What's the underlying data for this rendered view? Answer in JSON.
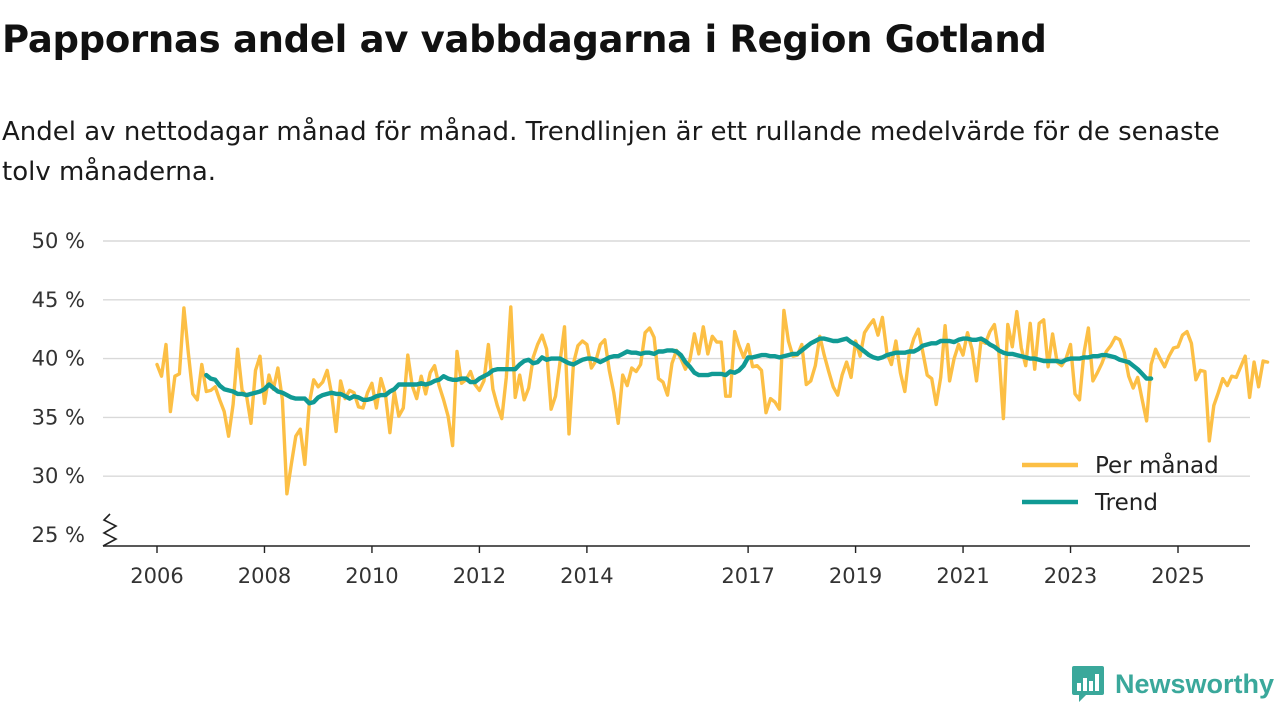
{
  "title": "Pappornas andel av vabbdagarna i Region Gotland",
  "subtitle": "Andel av nettodagar månad för månad. Trendlinjen är ett rullande medelvärde för de senaste tolv månaderna.",
  "brand": {
    "name": "Newsworthy",
    "logo_icon": "bar-chart-bubble-icon"
  },
  "colors": {
    "monthly": "#fcbf45",
    "trend": "#109a94",
    "grid": "#d9d9d9",
    "axis": "#222222"
  },
  "chart_data": {
    "type": "line",
    "title": "Pappornas andel av vabbdagarna i Region Gotland",
    "xlabel": "",
    "ylabel": "",
    "ylim": [
      25,
      50
    ],
    "y_ticks": [
      25,
      30,
      35,
      40,
      45,
      50
    ],
    "y_tick_labels": [
      "25 %",
      "30 %",
      "35 %",
      "40 %",
      "45 %",
      "50 %"
    ],
    "y_axis_break": true,
    "x_start": 2006.0,
    "x_step": 0.083333,
    "x_ticks": [
      2006,
      2008,
      2010,
      2012,
      2014,
      2017,
      2019,
      2021,
      2023,
      2025
    ],
    "x_tick_labels": [
      "2006",
      "2008",
      "2010",
      "2012",
      "2014",
      "2017",
      "2019",
      "2021",
      "2023",
      "2025"
    ],
    "legend": {
      "position": "bottom-right"
    },
    "series": [
      {
        "name": "Per månad",
        "color": "#fcbf45",
        "values": [
          39.5,
          38.5,
          41.2,
          35.5,
          38.5,
          38.7,
          44.3,
          40.5,
          37.0,
          36.5,
          39.5,
          37.2,
          37.3,
          37.6,
          36.5,
          35.5,
          33.4,
          36.1,
          40.8,
          37.3,
          36.8,
          34.5,
          39.0,
          40.2,
          36.2,
          38.6,
          37.4,
          39.2,
          36.5,
          28.5,
          31.0,
          33.4,
          34.0,
          31.0,
          36.2,
          38.2,
          37.6,
          38.0,
          39.0,
          37.0,
          33.8,
          38.1,
          36.6,
          37.3,
          37.1,
          35.9,
          35.8,
          37.1,
          37.9,
          35.8,
          38.3,
          37.0,
          33.7,
          37.2,
          35.1,
          35.8,
          40.3,
          37.7,
          36.6,
          38.5,
          37.0,
          38.8,
          39.4,
          37.7,
          36.5,
          35.1,
          32.6,
          40.6,
          37.9,
          38.2,
          38.9,
          37.8,
          37.3,
          38.1,
          41.2,
          37.4,
          36.0,
          34.9,
          38.4,
          44.4,
          36.7,
          38.6,
          36.5,
          37.5,
          40.1,
          41.2,
          42.0,
          40.8,
          35.7,
          36.8,
          39.7,
          42.7,
          33.6,
          39.6,
          41.1,
          41.5,
          41.2,
          39.2,
          39.8,
          41.2,
          41.6,
          39.0,
          37.1,
          34.5,
          38.6,
          37.7,
          39.2,
          38.9,
          39.5,
          42.2,
          42.6,
          41.8,
          38.3,
          38.0,
          36.9,
          39.6,
          40.7,
          40.0,
          39.1,
          39.9,
          42.1,
          40.4,
          42.7,
          40.4,
          41.9,
          41.4,
          41.4,
          36.8,
          36.8,
          42.3,
          41.1,
          40.1,
          41.2,
          39.3,
          39.4,
          39.0,
          35.4,
          36.6,
          36.3,
          35.7,
          44.1,
          41.5,
          40.2,
          40.3,
          41.2,
          37.8,
          38.1,
          39.4,
          41.9,
          40.3,
          38.9,
          37.6,
          36.9,
          38.6,
          39.7,
          38.4,
          41.5,
          40.2,
          42.2,
          42.8,
          43.3,
          42.0,
          43.5,
          40.5,
          39.5,
          41.5,
          38.8,
          37.2,
          40.4,
          41.7,
          42.5,
          40.6,
          38.6,
          38.3,
          36.1,
          38.4,
          42.8,
          38.1,
          40.0,
          41.2,
          40.3,
          42.2,
          40.8,
          38.1,
          41.5,
          41.3,
          42.3,
          42.9,
          40.5,
          34.9,
          42.9,
          41.0,
          44.0,
          40.9,
          39.4,
          43.0,
          39.1,
          43.0,
          43.3,
          39.3,
          42.1,
          39.7,
          39.4,
          40.0,
          41.2,
          37.0,
          36.5,
          40.5,
          42.6,
          38.1,
          38.8,
          39.6,
          40.6,
          41.1,
          41.8,
          41.6,
          40.5,
          38.5,
          37.5,
          38.4,
          36.5,
          34.7,
          39.5,
          40.8,
          40.0,
          39.3,
          40.2,
          40.9,
          41.0,
          42.0,
          42.3,
          41.3,
          38.2,
          39.0,
          38.9,
          33.0,
          36.0,
          37.1,
          38.3,
          37.7,
          38.5,
          38.4,
          39.3,
          40.2,
          36.7,
          39.7,
          37.6,
          39.8,
          39.7
        ]
      },
      {
        "name": "Trend",
        "color": "#109a94",
        "start_index": 11,
        "values": [
          38.6,
          38.3,
          38.2,
          37.7,
          37.4,
          37.3,
          37.2,
          37.0,
          37.0,
          36.9,
          37.0,
          37.1,
          37.2,
          37.4,
          37.8,
          37.5,
          37.2,
          37.1,
          36.9,
          36.7,
          36.6,
          36.6,
          36.6,
          36.2,
          36.3,
          36.7,
          36.9,
          37.0,
          37.1,
          37.0,
          37.0,
          36.8,
          36.6,
          36.8,
          36.7,
          36.5,
          36.5,
          36.6,
          36.8,
          36.9,
          36.9,
          37.2,
          37.4,
          37.8,
          37.8,
          37.8,
          37.8,
          37.8,
          37.9,
          37.8,
          37.9,
          38.1,
          38.2,
          38.5,
          38.3,
          38.2,
          38.2,
          38.3,
          38.3,
          38.0,
          38.0,
          38.3,
          38.5,
          38.7,
          39.0,
          39.1,
          39.1,
          39.1,
          39.1,
          39.1,
          39.5,
          39.8,
          39.9,
          39.6,
          39.7,
          40.1,
          39.9,
          40.0,
          40.0,
          40.0,
          39.8,
          39.6,
          39.5,
          39.7,
          39.9,
          40.0,
          40.0,
          39.9,
          39.7,
          39.9,
          40.1,
          40.2,
          40.2,
          40.4,
          40.6,
          40.5,
          40.5,
          40.4,
          40.5,
          40.5,
          40.4,
          40.6,
          40.6,
          40.7,
          40.7,
          40.6,
          40.3,
          39.7,
          39.3,
          38.8,
          38.6,
          38.6,
          38.6,
          38.7,
          38.7,
          38.7,
          38.6,
          38.9,
          38.8,
          39.0,
          39.4,
          40.1,
          40.1,
          40.2,
          40.3,
          40.3,
          40.2,
          40.2,
          40.1,
          40.2,
          40.3,
          40.4,
          40.4,
          40.7,
          41.0,
          41.3,
          41.5,
          41.7,
          41.7,
          41.6,
          41.5,
          41.5,
          41.6,
          41.7,
          41.4,
          41.2,
          40.9,
          40.6,
          40.3,
          40.1,
          40.0,
          40.1,
          40.3,
          40.4,
          40.5,
          40.5,
          40.5,
          40.6,
          40.6,
          40.8,
          41.1,
          41.2,
          41.3,
          41.3,
          41.5,
          41.5,
          41.5,
          41.4,
          41.6,
          41.7,
          41.7,
          41.6,
          41.6,
          41.7,
          41.5,
          41.2,
          41.0,
          40.7,
          40.5,
          40.4,
          40.4,
          40.3,
          40.2,
          40.1,
          40.0,
          40.0,
          39.9,
          39.8,
          39.8,
          39.8,
          39.8,
          39.7,
          39.9,
          40.0,
          40.0,
          40.0,
          40.1,
          40.1,
          40.2,
          40.2,
          40.3,
          40.3,
          40.2,
          40.1,
          39.9,
          39.8,
          39.7,
          39.4,
          39.1,
          38.7,
          38.3,
          38.3
        ]
      }
    ]
  }
}
